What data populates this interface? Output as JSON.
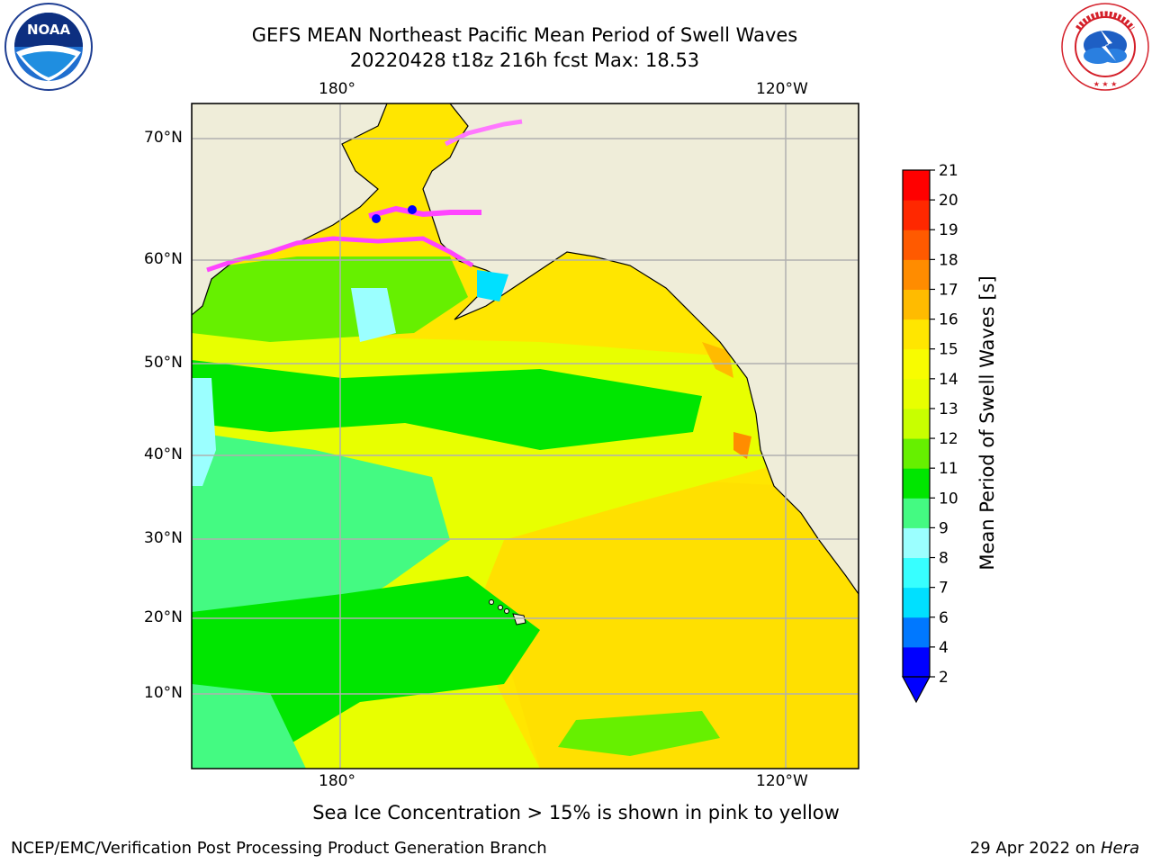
{
  "title": {
    "line1": "GEFS MEAN Northeast Pacific Mean Period of Swell Waves",
    "line2": "20220428 t18z 216h fcst   Max: 18.53"
  },
  "logos": {
    "left": "noaa-logo",
    "right": "nws-logo"
  },
  "map": {
    "lon_labels_top": [
      "180°",
      "120°W"
    ],
    "lon_labels_bottom": [
      "180°",
      "120°W"
    ],
    "lat_labels": [
      "70°N",
      "60°N",
      "50°N",
      "40°N",
      "30°N",
      "20°N",
      "10°N"
    ],
    "colors": {
      "land": "#efedd9",
      "grid": "#b0b0b0"
    }
  },
  "colorbar": {
    "label": "Mean Period of Swell Waves [s]",
    "ticks": [
      "2",
      "4",
      "6",
      "7",
      "8",
      "9",
      "10",
      "11",
      "12",
      "13",
      "14",
      "15",
      "16",
      "17",
      "18",
      "19",
      "20",
      "21"
    ],
    "colors": [
      "#0000ff",
      "#0078ff",
      "#00e0ff",
      "#37ffff",
      "#9bffff",
      "#44fa82",
      "#00e600",
      "#66f000",
      "#c8ff00",
      "#e8ff00",
      "#f8fc00",
      "#ffe600",
      "#ffbb00",
      "#ff8c00",
      "#ff5a00",
      "#ff2800",
      "#ff0000"
    ]
  },
  "footer": {
    "note": "Sea Ice Concentration > 15% is shown in pink to yellow",
    "left": "NCEP/EMC/Verification Post Processing Product Generation Branch",
    "right_date": "29 Apr 2022 on",
    "right_host": "Hera"
  }
}
